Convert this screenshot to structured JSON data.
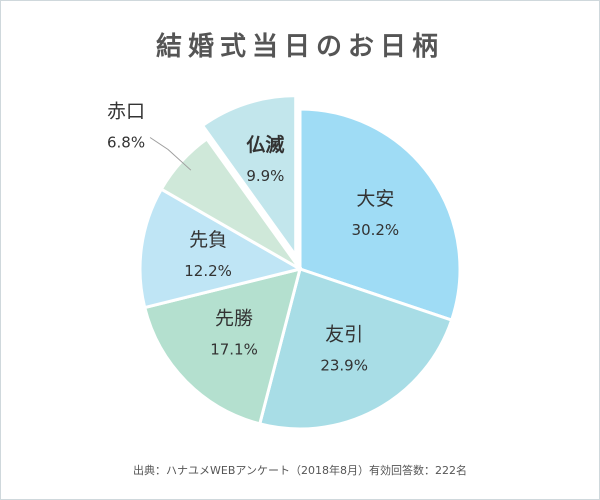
{
  "chart_data": {
    "type": "pie",
    "title": "結婚式当日のお日柄",
    "source": "出典：ハナユメWEBアンケート（2018年8月）有効回答数：222名",
    "slices": [
      {
        "label": "大安",
        "value": 30.2,
        "value_text": "30.2%",
        "color": "#9fdcf5"
      },
      {
        "label": "友引",
        "value": 23.9,
        "value_text": "23.9%",
        "color": "#a8dde6"
      },
      {
        "label": "先勝",
        "value": 17.1,
        "value_text": "17.1%",
        "color": "#b4e0cf"
      },
      {
        "label": "先負",
        "value": 12.2,
        "value_text": "12.2%",
        "color": "#bfe5f5"
      },
      {
        "label": "赤口",
        "value": 6.8,
        "value_text": "6.8%",
        "color": "#cfe8d9"
      },
      {
        "label": "仏滅",
        "value": 9.9,
        "value_text": "9.9%",
        "color": "#c2e6ec",
        "exploded": true,
        "emphasis": true
      }
    ]
  }
}
